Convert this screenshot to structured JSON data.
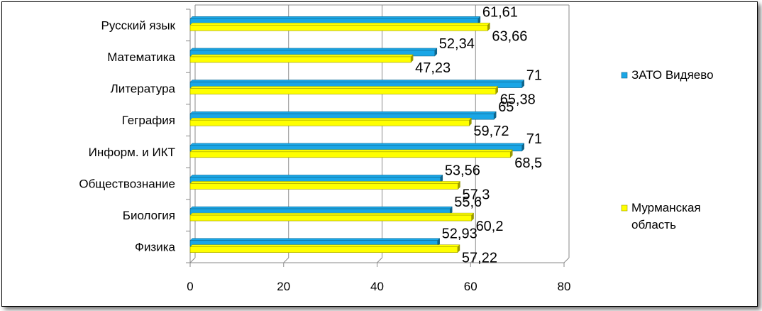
{
  "chart_data": {
    "type": "bar",
    "orientation": "horizontal",
    "categories": [
      "Русский язык",
      "Математика",
      "Литература",
      "Геграфия",
      "Информ. и ИКТ",
      "Обществознание",
      "Биология",
      "Физика"
    ],
    "series": [
      {
        "name": "ЗАТО Видяево",
        "color": "#1aa6e6",
        "values": [
          61.61,
          52.34,
          71,
          65,
          71,
          53.56,
          55.6,
          52.93
        ],
        "labels": [
          "61,61",
          "52,34",
          "71",
          "65",
          "71",
          "53,56",
          "55,6",
          "52,93"
        ]
      },
      {
        "name": "Мурманская область",
        "color": "#ffff00",
        "values": [
          63.66,
          47.23,
          65.38,
          59.72,
          68.5,
          57.3,
          60.2,
          57.22
        ],
        "labels": [
          "63,66",
          "47,23",
          "65,38",
          "59,72",
          "68,5",
          "57,3",
          "60,2",
          "57,22"
        ]
      }
    ],
    "xlim": [
      0,
      80
    ],
    "x_ticks": [
      "0",
      "20",
      "40",
      "60",
      "80"
    ],
    "grid": true,
    "legend_position": "right"
  }
}
